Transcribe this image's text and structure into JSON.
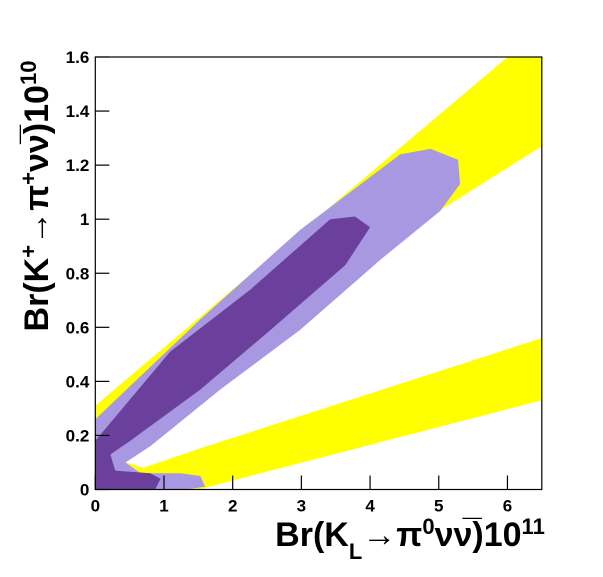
{
  "chart_data": {
    "type": "contour",
    "xlabel": [
      {
        "text": "Br(K"
      },
      {
        "text": "L",
        "sub": true
      },
      {
        "text": "→π"
      },
      {
        "text": "0",
        "sup": true
      },
      {
        "text": "νν̅)10"
      },
      {
        "text": "11",
        "sup": true
      }
    ],
    "ylabel": [
      {
        "text": "Br(K"
      },
      {
        "text": "+",
        "sup": true
      },
      {
        "text": "→π"
      },
      {
        "text": "+",
        "sup": true
      },
      {
        "text": "νν̅)10"
      },
      {
        "text": "10",
        "sup": true
      }
    ],
    "xlim": [
      0,
      6.5
    ],
    "ylim": [
      0,
      1.6
    ],
    "xticks": [
      0,
      1,
      2,
      3,
      4,
      5,
      6
    ],
    "yticks": [
      0,
      0.2,
      0.4,
      0.6,
      0.8,
      1,
      1.2,
      1.4,
      1.6
    ],
    "regions": [
      {
        "color": "#ffff00",
        "x": [
          0,
          6.0,
          6.5,
          6.5,
          4.0,
          2.0,
          1.0,
          0.6,
          0.45,
          0.7,
          1.5,
          6.5,
          6.5,
          1.5,
          0
        ],
        "y": [
          0.31,
          1.6,
          1.6,
          1.27,
          0.87,
          0.45,
          0.29,
          0.18,
          0.1,
          0.08,
          0.15,
          0.56,
          0.33,
          0,
          0
        ]
      },
      {
        "color": "#a898e2",
        "x": [
          0,
          0,
          1.53,
          2.98,
          4.44,
          4.88,
          5.28,
          5.31,
          5.02,
          4.15,
          2.98,
          1.82,
          0.8,
          0.44,
          0.66,
          1.24,
          1.53,
          1.6,
          1.31
        ],
        "y": [
          0,
          0.26,
          0.63,
          0.96,
          1.24,
          1.26,
          1.22,
          1.13,
          1.03,
          0.85,
          0.59,
          0.37,
          0.16,
          0.1,
          0.06,
          0.06,
          0.05,
          0.01,
          0
        ]
      },
      {
        "color": "#6b3f9c",
        "x": [
          0,
          0,
          1.09,
          2.26,
          3.42,
          3.78,
          4.0,
          3.64,
          2.55,
          1.53,
          0.51,
          0.22,
          0.29,
          0.8,
          0.95,
          0.87
        ],
        "y": [
          0,
          0.18,
          0.51,
          0.74,
          1.0,
          1.01,
          0.97,
          0.83,
          0.59,
          0.37,
          0.18,
          0.13,
          0.07,
          0.06,
          0.04,
          0
        ]
      }
    ]
  }
}
